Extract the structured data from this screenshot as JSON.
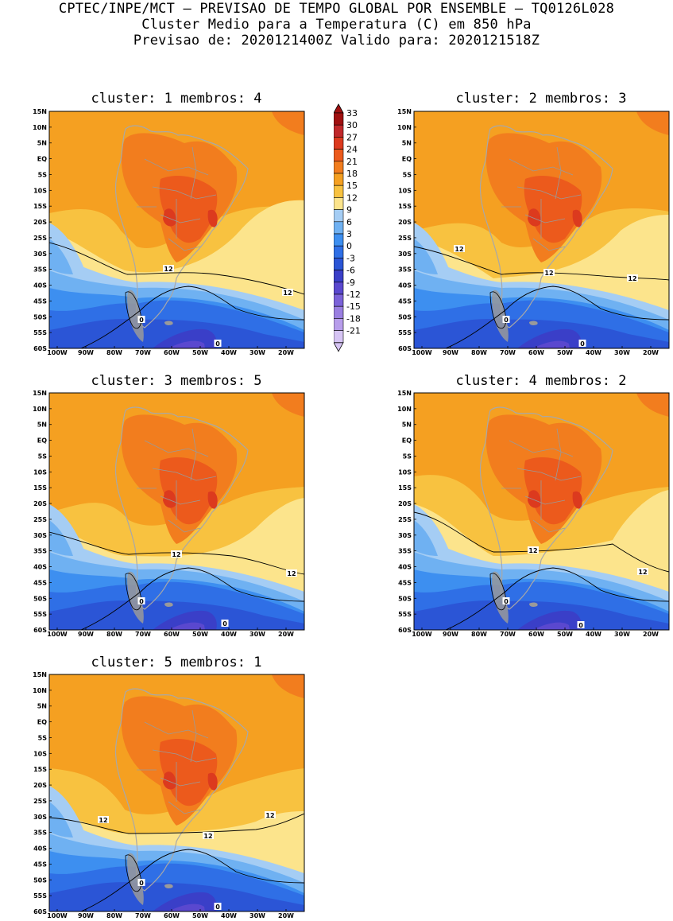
{
  "header": {
    "line1": "CPTEC/INPE/MCT — PREVISAO DE TEMPO GLOBAL POR ENSEMBLE — TQ0126L028",
    "line2": "Cluster Medio para a Temperatura (C) em 850 hPa",
    "line3": "Previsao de: 2020121400Z   Valido para: 2020121518Z"
  },
  "axes": {
    "lat_labels": [
      "15N",
      "10N",
      "5N",
      "EQ",
      "5S",
      "10S",
      "15S",
      "20S",
      "25S",
      "30S",
      "35S",
      "40S",
      "45S",
      "50S",
      "55S",
      "60S"
    ],
    "lon_labels": [
      "100W",
      "90W",
      "80W",
      "70W",
      "60W",
      "50W",
      "40W",
      "30W",
      "20W"
    ]
  },
  "colorbar": {
    "levels": [
      "33",
      "30",
      "27",
      "24",
      "21",
      "18",
      "15",
      "12",
      "9",
      "6",
      "3",
      "0",
      "-3",
      "-6",
      "-9",
      "-12",
      "-15",
      "-18",
      "-21"
    ],
    "colors": [
      "#a01010",
      "#c0282a",
      "#dc3a1e",
      "#ec5a1c",
      "#f27d1e",
      "#f5a021",
      "#f8c240",
      "#fce48c",
      "#a5cdf4",
      "#6fb1f2",
      "#3d8ff0",
      "#2f6fe6",
      "#2b55d6",
      "#3a3fc8",
      "#5a48cf",
      "#7b62d9",
      "#9a7fe1",
      "#b79deb",
      "#d6c4f4"
    ],
    "show_arrows": true
  },
  "panels": [
    {
      "title": "cluster: 1   membros: 4",
      "contour_labels": [
        "12",
        "12",
        "0",
        "0"
      ]
    },
    {
      "title": "cluster: 2   membros: 3",
      "contour_labels": [
        "12",
        "12",
        "12",
        "0",
        "0"
      ]
    },
    {
      "title": "cluster: 3   membros: 5",
      "contour_labels": [
        "12",
        "12",
        "0",
        "0"
      ]
    },
    {
      "title": "cluster: 4   membros: 2",
      "contour_labels": [
        "12",
        "12",
        "0",
        "0"
      ]
    },
    {
      "title": "cluster: 5   membros: 1",
      "contour_labels": [
        "12",
        "12",
        "12",
        "0",
        "0"
      ]
    }
  ]
}
